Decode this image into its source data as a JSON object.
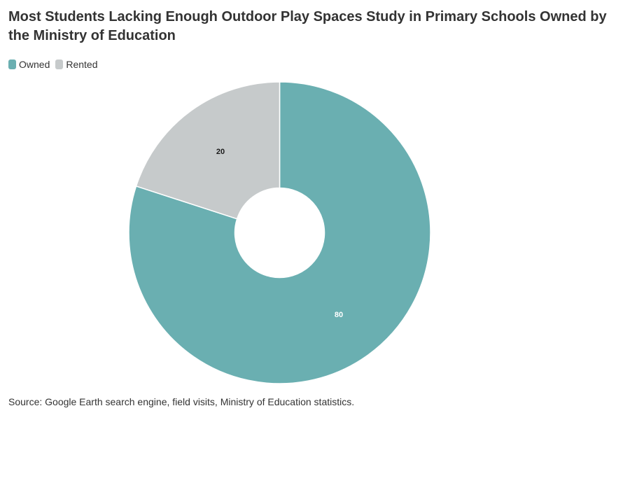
{
  "chart_data": {
    "type": "pie",
    "title": "Most Students Lacking Enough Outdoor Play Spaces Study in Primary Schools Owned by the Ministry of Education",
    "categories": [
      "Owned",
      "Rented"
    ],
    "values": [
      80,
      20
    ],
    "colors": [
      "#6aafb1",
      "#c6cacb"
    ],
    "label_colors": [
      "#ffffff",
      "#1a1a1a"
    ],
    "donut": true,
    "legend_position": "top-left",
    "source": "Source: Google Earth search engine, field visits, Ministry of Education statistics."
  }
}
